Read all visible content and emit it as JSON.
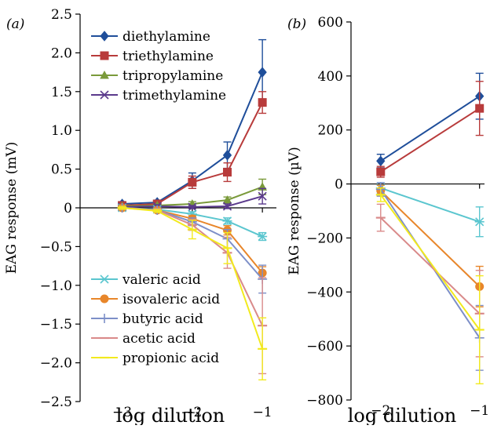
{
  "chart_data": [
    {
      "type": "line",
      "panel_label": "(a)",
      "xlabel": "log dilution",
      "ylabel": "EAG response (mV)",
      "xlim": [
        -3.6,
        -0.8
      ],
      "ylim": [
        -2.5,
        2.5
      ],
      "xticks": [
        -3,
        -2,
        -1
      ],
      "yticks": [
        -2.5,
        -2.0,
        -1.5,
        -1.0,
        -0.5,
        0,
        0.5,
        1.0,
        1.5,
        2.0,
        2.5
      ],
      "ytick_labels": [
        "−2.5",
        "−2.0",
        "−1.5",
        "−1.0",
        "−0.5",
        "0",
        "0.5",
        "1.0",
        "1.5",
        "2.0",
        "2.5"
      ],
      "xtick_labels": [
        "−3",
        "−2",
        "−1"
      ],
      "x": [
        -3,
        -2.5,
        -2,
        -1.5,
        -1
      ],
      "legend_groups": [
        {
          "placement": "top-left",
          "names": [
            "diethylamine",
            "triethylamine",
            "tripropylamine",
            "trimethylamine"
          ]
        },
        {
          "placement": "bottom-left",
          "names": [
            "valeric acid",
            "isovaleric acid",
            "butyric acid",
            "acetic acid",
            "propionic acid"
          ]
        }
      ],
      "series": [
        {
          "name": "diethylamine",
          "color": "#1f4e9a",
          "marker": "diamond",
          "values": [
            0.05,
            0.07,
            0.35,
            0.68,
            1.75
          ],
          "err": [
            0.03,
            0.03,
            0.1,
            0.17,
            0.42
          ]
        },
        {
          "name": "triethylamine",
          "color": "#b83b3b",
          "marker": "square",
          "values": [
            0.03,
            0.05,
            0.33,
            0.46,
            1.36
          ],
          "err": [
            0.03,
            0.03,
            0.08,
            0.12,
            0.14
          ]
        },
        {
          "name": "tripropylamine",
          "color": "#7a9a3a",
          "marker": "triangle",
          "values": [
            0.02,
            0.03,
            0.05,
            0.1,
            0.27
          ],
          "err": [
            0.02,
            0.02,
            0.03,
            0.04,
            0.1
          ]
        },
        {
          "name": "trimethylamine",
          "color": "#5b3a8c",
          "marker": "x",
          "values": [
            0.01,
            0.02,
            0.01,
            0.02,
            0.15
          ],
          "err": [
            0.02,
            0.02,
            0.02,
            0.03,
            0.1
          ]
        },
        {
          "name": "valeric acid",
          "color": "#5bc6cf",
          "marker": "asterisk",
          "values": [
            0.0,
            -0.02,
            -0.08,
            -0.17,
            -0.37
          ],
          "err": [
            0.02,
            0.02,
            0.03,
            0.04,
            0.05
          ]
        },
        {
          "name": "isovaleric acid",
          "color": "#e8862a",
          "marker": "circle",
          "values": [
            0.0,
            -0.03,
            -0.14,
            -0.29,
            -0.84
          ],
          "err": [
            0.02,
            0.02,
            0.04,
            0.06,
            0.08
          ]
        },
        {
          "name": "butyric acid",
          "color": "#7d8fc8",
          "marker": "plus",
          "values": [
            0.0,
            -0.03,
            -0.18,
            -0.4,
            -0.92
          ],
          "err": [
            0.02,
            0.02,
            0.05,
            0.12,
            0.18
          ]
        },
        {
          "name": "acetic acid",
          "color": "#d98a8a",
          "marker": "dash",
          "values": [
            0.0,
            -0.03,
            -0.22,
            -0.58,
            -1.52
          ],
          "err": [
            0.02,
            0.02,
            0.07,
            0.2,
            0.62
          ]
        },
        {
          "name": "propionic acid",
          "color": "#f2ea1e",
          "marker": "dash",
          "values": [
            0.0,
            -0.04,
            -0.28,
            -0.52,
            -1.82
          ],
          "err": [
            0.02,
            0.02,
            0.12,
            0.2,
            0.4
          ]
        }
      ]
    },
    {
      "type": "line",
      "panel_label": "(b)",
      "xlabel": "log dilution",
      "ylabel": "EAG response (µV)",
      "xlim": [
        -2.3,
        -0.95
      ],
      "ylim": [
        -800,
        600
      ],
      "xticks": [
        -2,
        -1
      ],
      "xtick_labels": [
        "−2",
        "−1"
      ],
      "yticks": [
        -800,
        -600,
        -400,
        -200,
        0,
        200,
        400,
        600
      ],
      "ytick_labels": [
        "−800",
        "−600",
        "−400",
        "−200",
        "0",
        "200",
        "400",
        "600"
      ],
      "x": [
        -2,
        -1
      ],
      "series": [
        {
          "name": "diethylamine",
          "color": "#1f4e9a",
          "marker": "diamond",
          "values": [
            85,
            325
          ],
          "err": [
            25,
            85
          ]
        },
        {
          "name": "triethylamine",
          "color": "#b83b3b",
          "marker": "square",
          "values": [
            45,
            280
          ],
          "err": [
            20,
            100
          ]
        },
        {
          "name": "valeric acid",
          "color": "#5bc6cf",
          "marker": "asterisk",
          "values": [
            -15,
            -140
          ],
          "err": [
            20,
            55
          ]
        },
        {
          "name": "isovaleric acid",
          "color": "#e8862a",
          "marker": "circle",
          "values": [
            -25,
            -380
          ],
          "err": [
            20,
            75
          ]
        },
        {
          "name": "butyric acid",
          "color": "#7d8fc8",
          "marker": "plus",
          "values": [
            -20,
            -570
          ],
          "err": [
            25,
            120
          ]
        },
        {
          "name": "acetic acid",
          "color": "#d98a8a",
          "marker": "dash",
          "values": [
            -125,
            -480
          ],
          "err": [
            50,
            160
          ]
        },
        {
          "name": "propionic acid",
          "color": "#f2ea1e",
          "marker": "dash",
          "values": [
            -40,
            -540
          ],
          "err": [
            25,
            200
          ]
        }
      ]
    }
  ]
}
